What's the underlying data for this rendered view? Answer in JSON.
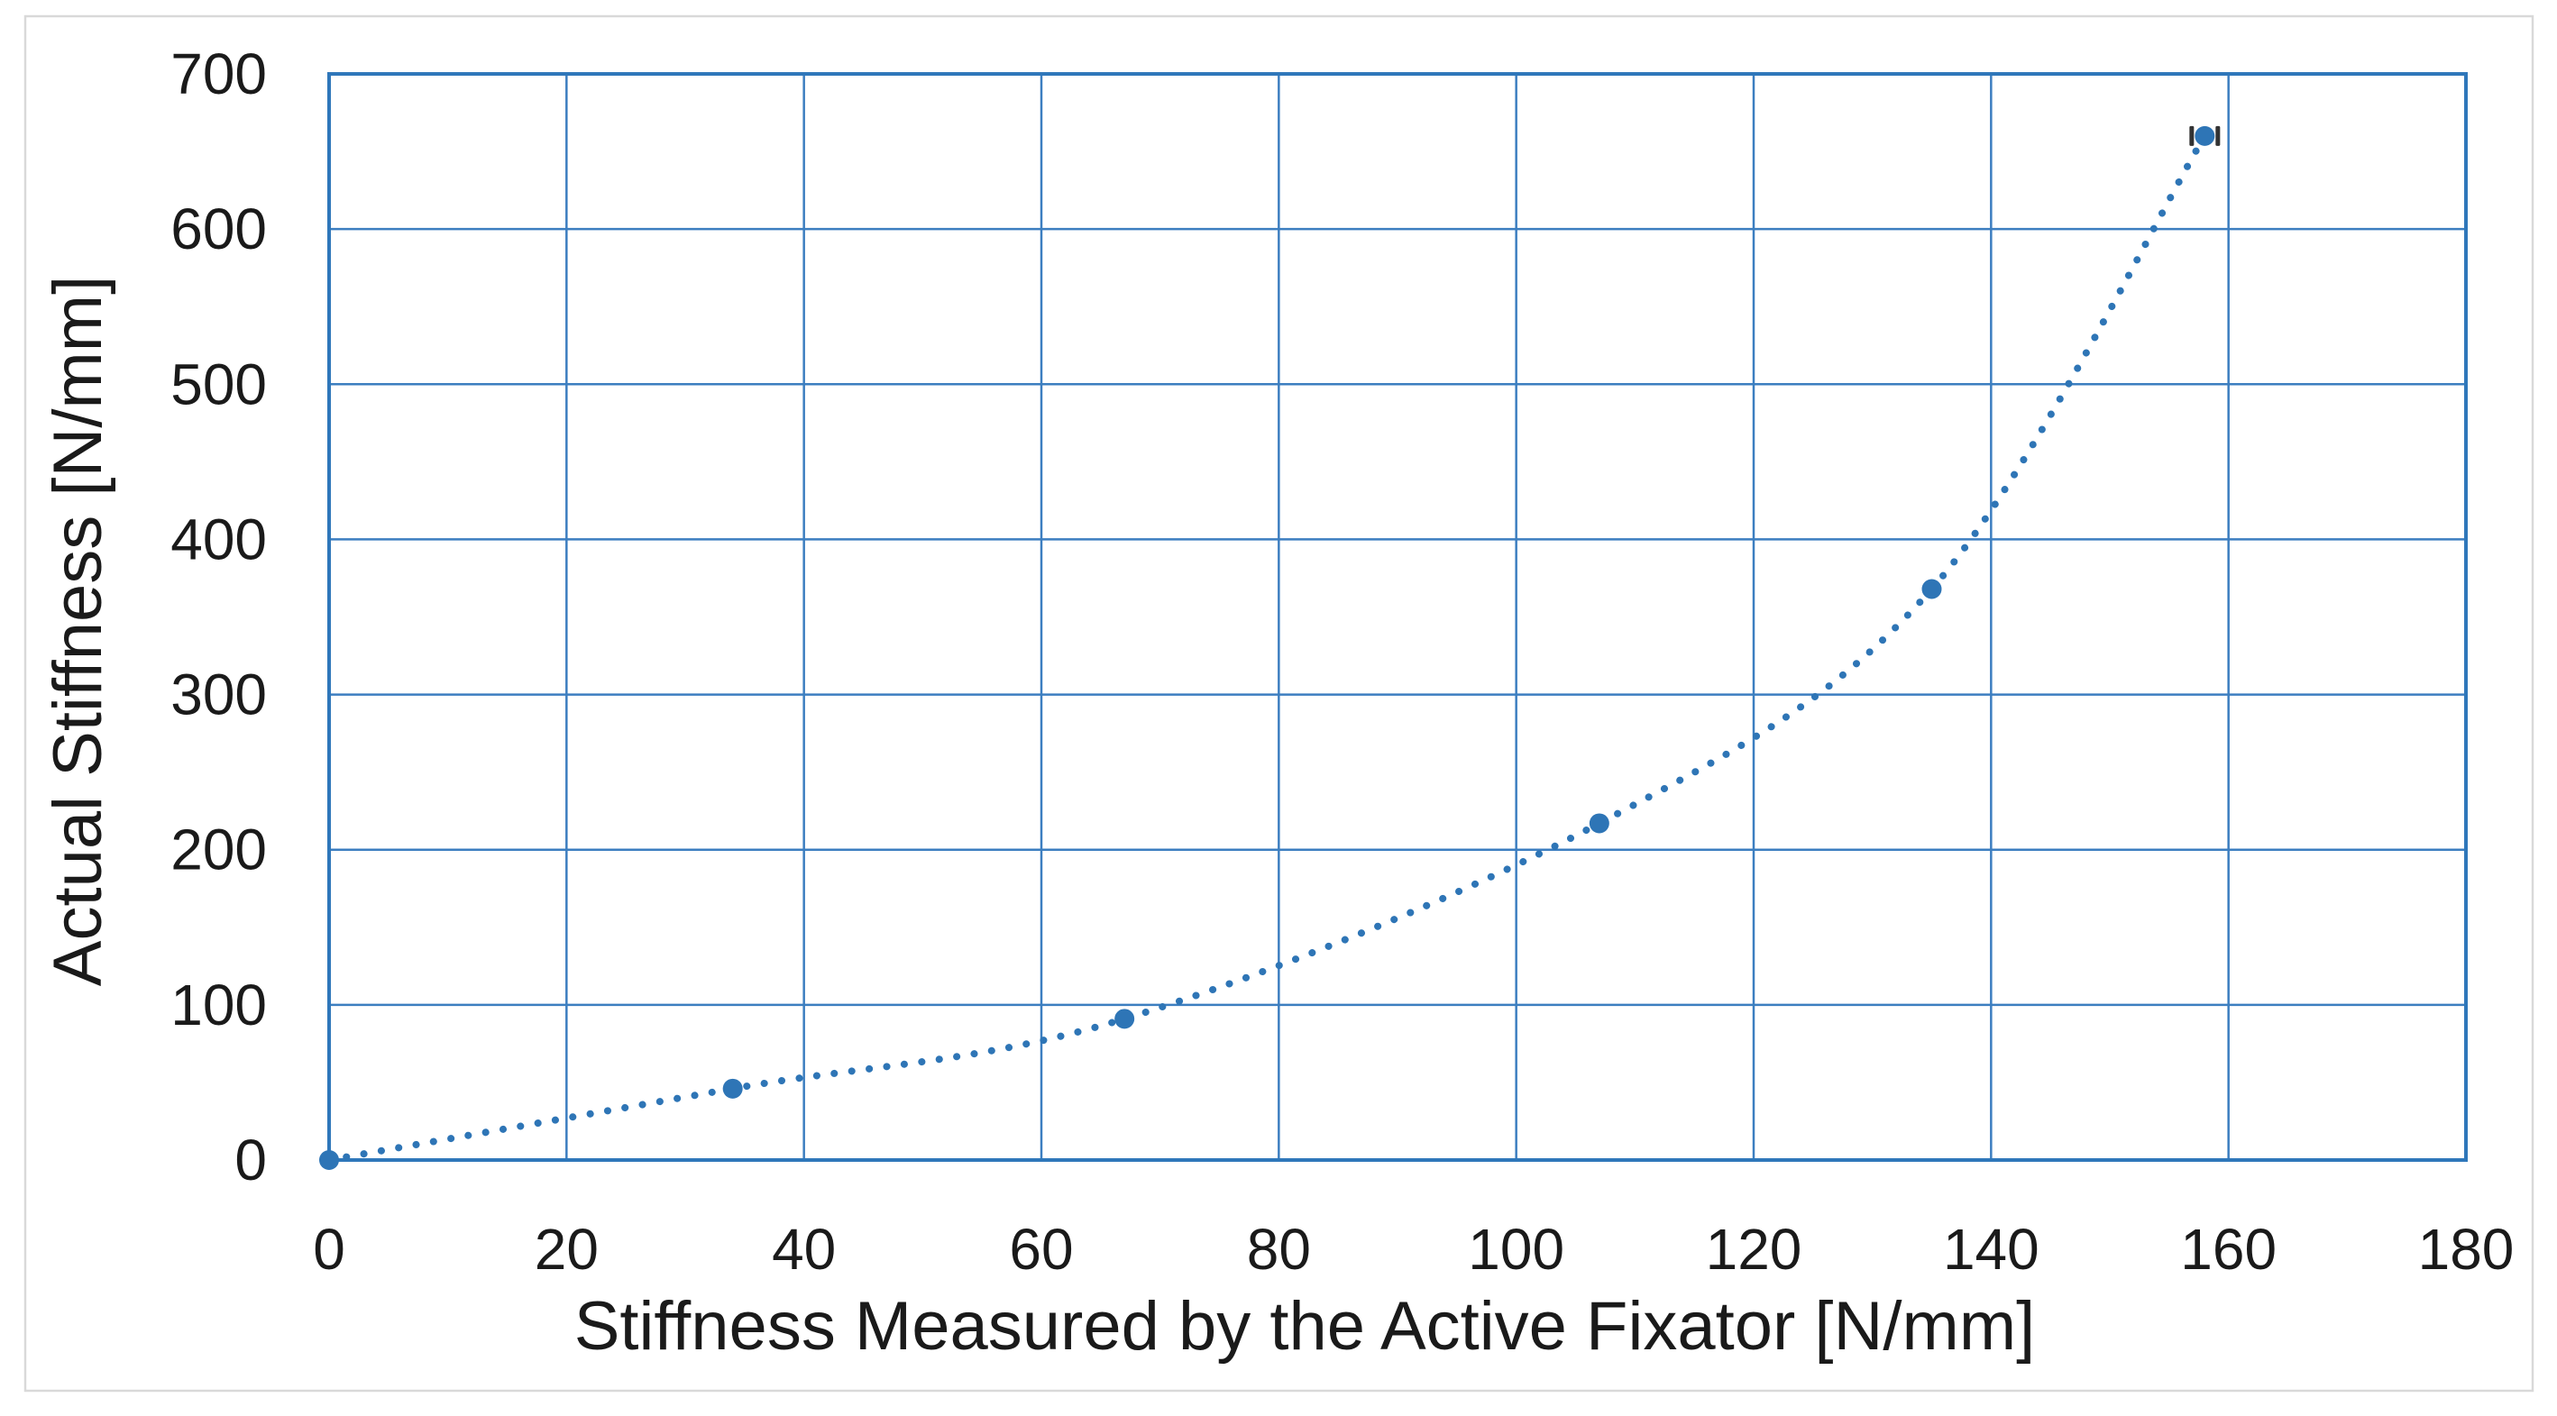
{
  "chart_data": {
    "type": "scatter",
    "title": "",
    "xlabel": "Stiffness Measured by the Active Fixator [N/mm]",
    "ylabel": "Actual Stiffness [N/mm]",
    "x": [
      0,
      34,
      67,
      107,
      135,
      158
    ],
    "y": [
      0,
      46,
      91,
      217,
      368,
      660
    ],
    "xlim": [
      0,
      180
    ],
    "ylim": [
      0,
      700
    ],
    "x_ticks": [
      0,
      20,
      40,
      60,
      80,
      100,
      120,
      140,
      160,
      180
    ],
    "y_ticks": [
      0,
      100,
      200,
      300,
      400,
      500,
      600,
      700
    ],
    "grid": true,
    "legend": false,
    "trendline": "dotted smooth curve through all points",
    "marker_style": "filled circle",
    "last_point_caps": "small dark tick marks on left and right of final marker",
    "colors": {
      "series": "#2E75B6",
      "grid": "#3C7EC0",
      "plot_border": "#2F77BA",
      "axis_text": "#1a1a1a",
      "outer_frame": "#D9D9D9",
      "endpoint_cap": "#333333"
    }
  }
}
